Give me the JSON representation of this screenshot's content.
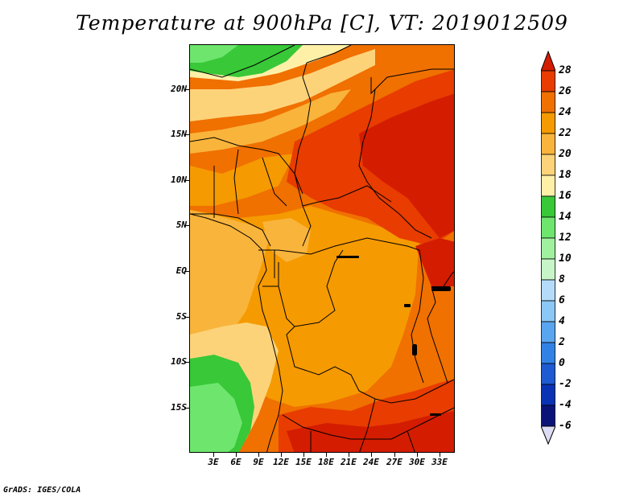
{
  "title": "Temperature at 900hPa [C], VT: 2019012509",
  "credit": "GrADS: IGES/COLA",
  "map": {
    "lat_labels": [
      "20N",
      "15N",
      "10N",
      "5N",
      "EQ",
      "5S",
      "10S",
      "15S"
    ],
    "lon_labels": [
      "3E",
      "6E",
      "9E",
      "12E",
      "15E",
      "18E",
      "21E",
      "24E",
      "27E",
      "30E",
      "33E"
    ]
  },
  "colorbar": {
    "labels": [
      "28",
      "26",
      "24",
      "22",
      "20",
      "18",
      "16",
      "14",
      "12",
      "10",
      "8",
      "6",
      "4",
      "2",
      "0",
      "-2",
      "-4",
      "-6"
    ],
    "colors": [
      "#d41c00",
      "#e83c00",
      "#f07000",
      "#f59a00",
      "#f9b43c",
      "#fdd37a",
      "#fff0a8",
      "#38c838",
      "#6ee66e",
      "#a0f0a0",
      "#c8f5c8",
      "#b4dcfa",
      "#8cc8f5",
      "#5aa5f0",
      "#3282e6",
      "#1e5ad2",
      "#0a32b4",
      "#0a1478"
    ],
    "over_color": "#d41c00",
    "under_color": "#dcdcf5"
  }
}
